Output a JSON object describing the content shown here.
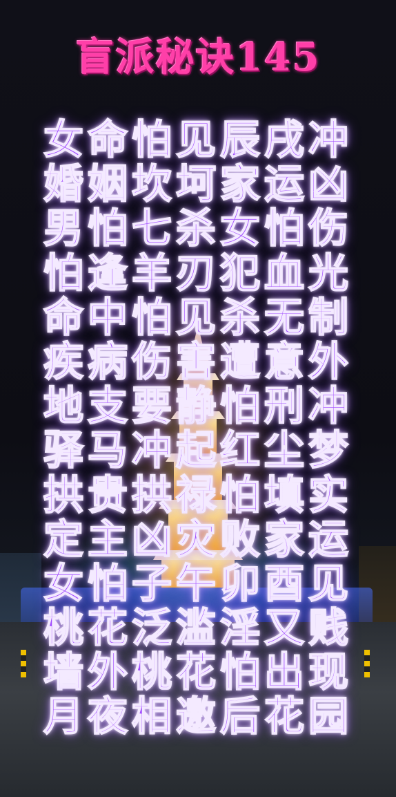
{
  "title": "盲派秘诀145",
  "poem": {
    "lines": [
      "女命怕见辰戌冲",
      "婚姻坎坷家运凶",
      "男怕七杀女怕伤",
      "怕逢羊刃犯血光",
      "命中怕见杀无制",
      "疾病伤害遭意外",
      "地支要静怕刑冲",
      "驿马冲起红尘梦",
      "拱贵拱禄怕填实",
      "定主凶灾败家运",
      "女怕子午卯酉见",
      "桃花泛滥淫又贱",
      "墙外桃花怕出现",
      "月夜相邀后花园"
    ]
  },
  "colors": {
    "title": "#ff3fa8",
    "text": "#a14cff",
    "background": "#0a0a10"
  }
}
